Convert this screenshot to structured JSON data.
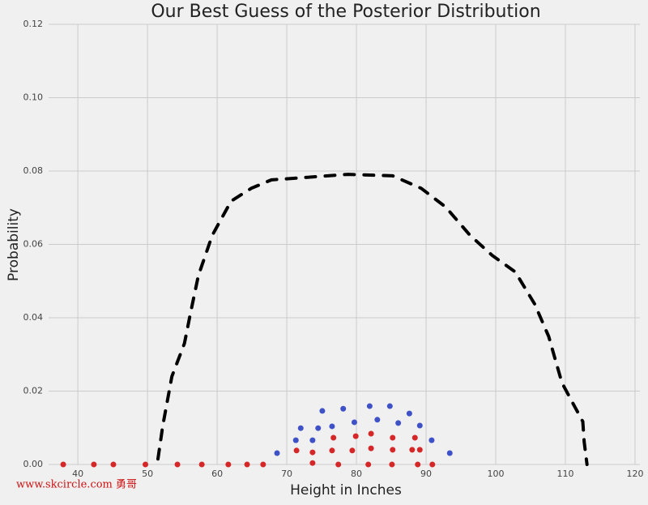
{
  "chart_data": {
    "type": "line",
    "title": "Our Best Guess of the Posterior Distribution",
    "x_label": "Height in Inches",
    "y_label": "Probability",
    "watermark": "www.skcircle.com 勇哥",
    "xlim": [
      35.8,
      120.7
    ],
    "ylim": [
      0,
      0.12
    ],
    "xticks": [
      40,
      50,
      60,
      70,
      80,
      90,
      100,
      110,
      120
    ],
    "yticks": [
      {
        "value": 0,
        "label": "0.00"
      },
      0.02,
      0.04,
      0.06,
      0.08,
      {
        "value": 0.1,
        "label": "0.10"
      },
      0.12
    ],
    "grid": true,
    "series": [
      {
        "color": "#000000",
        "mode": "dashed-line",
        "x": [
          51.5,
          52.2,
          53.5,
          55.3,
          56.2,
          57.3,
          59.3,
          62,
          64.9,
          67.8,
          72.4,
          78.8,
          85.2,
          89.3,
          92.8,
          96.3,
          99.5,
          102.8,
          105.6,
          107.6,
          109.5,
          111.1,
          112.5,
          112.7,
          113.1
        ],
        "values": [
          0.0015,
          0.0106,
          0.024,
          0.033,
          0.0415,
          0.0515,
          0.0625,
          0.0718,
          0.0753,
          0.0776,
          0.0782,
          0.0791,
          0.0787,
          0.0753,
          0.0702,
          0.0625,
          0.057,
          0.0525,
          0.0437,
          0.0349,
          0.0223,
          0.0166,
          0.0117,
          0.0062,
          0
        ]
      },
      {
        "color": "#3f51c6",
        "mode": "markers",
        "x": [
          68.6,
          71.3,
          72.0,
          73.7,
          74.5,
          75.1,
          76.5,
          78.1,
          79.7,
          81.9,
          83.0,
          84.8,
          86.0,
          87.6,
          89.1,
          90.8,
          93.4
        ],
        "values": [
          0.0031,
          0.0066,
          0.0099,
          0.0066,
          0.0099,
          0.0146,
          0.0104,
          0.0152,
          0.0115,
          0.0159,
          0.0122,
          0.0159,
          0.0113,
          0.0139,
          0.0106,
          0.0066,
          0.0031
        ]
      },
      {
        "color": "#d62728",
        "mode": "markers",
        "x": [
          37.9,
          42.3,
          45.1,
          49.7,
          54.3,
          57.8,
          61.6,
          64.3,
          66.6,
          71.4,
          73.7,
          73.7,
          76.5,
          76.7,
          77.4,
          79.4,
          79.9,
          81.7,
          82.1,
          82.1,
          85.1,
          85.2,
          85.2,
          88.0,
          88.4,
          88.8,
          89.1,
          90.9
        ],
        "values": [
          0,
          0,
          0,
          0,
          0,
          0,
          0,
          0,
          0,
          0.0038,
          0.0033,
          0.0004,
          0.0038,
          0.0073,
          0,
          0.0038,
          0.0077,
          0,
          0.0084,
          0.0044,
          0,
          0.0073,
          0.004,
          0.004,
          0.0073,
          0,
          0.004,
          0
        ]
      }
    ]
  }
}
